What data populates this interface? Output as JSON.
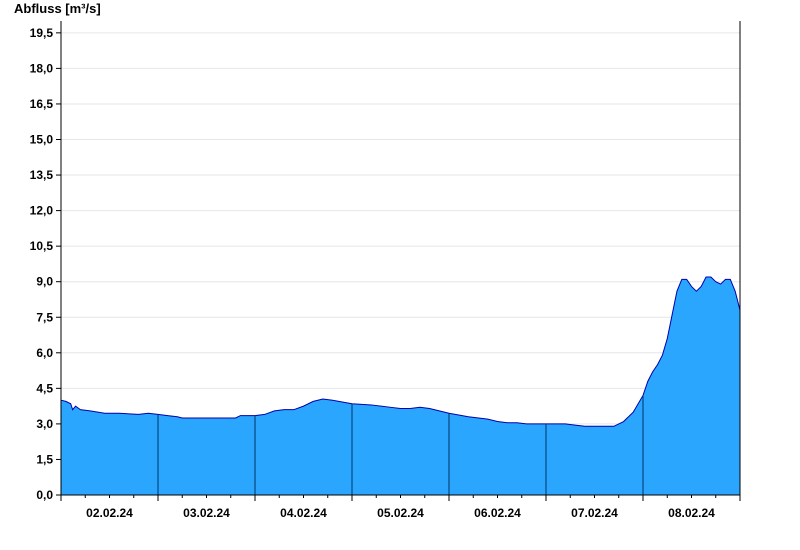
{
  "chart_data": {
    "type": "area",
    "ylabel": "Abfluss [m³/s]",
    "xlabel": "",
    "title": "",
    "ylim": [
      0,
      20
    ],
    "yticks": [
      "0,0",
      "1,5",
      "3,0",
      "4,5",
      "6,0",
      "7,5",
      "9,0",
      "10,5",
      "12,0",
      "13,5",
      "15,0",
      "16,5",
      "18,0",
      "19,5"
    ],
    "ytick_values": [
      0,
      1.5,
      3,
      4.5,
      6,
      7.5,
      9,
      10.5,
      12,
      13.5,
      15,
      16.5,
      18,
      19.5
    ],
    "x_unit": "days since start of 02.02.24",
    "xlim": [
      0,
      7
    ],
    "xtick_labels": [
      "02.02.24",
      "03.02.24",
      "04.02.24",
      "05.02.24",
      "06.02.24",
      "07.02.24",
      "08.02.24"
    ],
    "grid": {
      "horizontal": true,
      "vertical": false
    },
    "colors": {
      "fill": "#2aa6ff",
      "line": "#0000aa",
      "day_separator": "#003366",
      "grid": "#e6e6e6"
    },
    "series": [
      {
        "x": [
          0,
          0.05,
          0.1,
          0.12,
          0.15,
          0.2,
          0.3,
          0.45,
          0.6,
          0.8,
          0.9,
          1.0,
          1.1,
          1.2,
          1.25,
          1.4,
          1.6,
          1.8,
          1.85,
          2.0,
          2.1,
          2.2,
          2.3,
          2.4,
          2.5,
          2.6,
          2.7,
          2.8,
          3.0,
          3.2,
          3.4,
          3.5,
          3.6,
          3.7,
          3.8,
          3.9,
          4.0,
          4.2,
          4.4,
          4.5,
          4.6,
          4.7,
          4.8,
          5.0,
          5.2,
          5.3,
          5.4,
          5.5,
          5.6,
          5.7,
          5.8,
          5.9,
          6.0,
          6.05,
          6.1,
          6.15,
          6.2,
          6.25,
          6.3,
          6.35,
          6.4,
          6.45,
          6.5,
          6.55,
          6.6,
          6.65,
          6.7,
          6.75,
          6.8,
          6.85,
          6.9,
          6.95,
          7.0
        ],
        "y": [
          4.0,
          3.95,
          3.85,
          3.6,
          3.75,
          3.6,
          3.55,
          3.45,
          3.45,
          3.4,
          3.45,
          3.4,
          3.35,
          3.3,
          3.25,
          3.25,
          3.25,
          3.25,
          3.35,
          3.35,
          3.4,
          3.55,
          3.6,
          3.6,
          3.75,
          3.95,
          4.05,
          4.0,
          3.85,
          3.8,
          3.7,
          3.65,
          3.65,
          3.7,
          3.65,
          3.55,
          3.45,
          3.3,
          3.2,
          3.1,
          3.05,
          3.05,
          3.0,
          3.0,
          3.0,
          2.95,
          2.9,
          2.9,
          2.9,
          2.9,
          3.1,
          3.5,
          4.2,
          4.8,
          5.2,
          5.5,
          5.9,
          6.6,
          7.6,
          8.6,
          9.1,
          9.1,
          8.8,
          8.6,
          8.8,
          9.2,
          9.2,
          9.0,
          8.9,
          9.1,
          9.1,
          8.6,
          7.8
        ]
      }
    ]
  }
}
